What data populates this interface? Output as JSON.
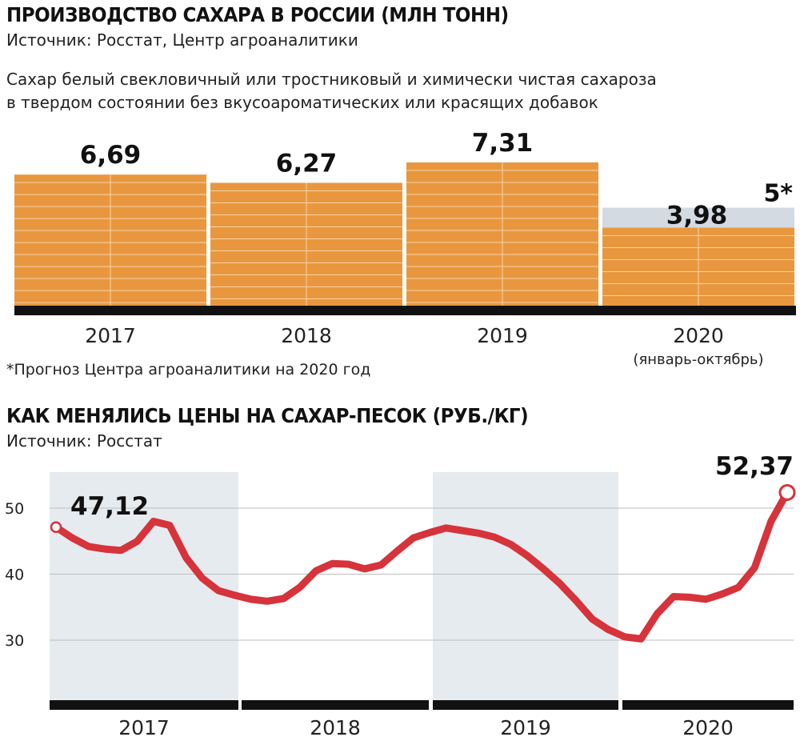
{
  "chart1": {
    "title": "ПРОИЗВОДСТВО САХАРА В РОССИИ (МЛН ТОНН)",
    "source": "Источник: Росстат, Центр агроаналитики",
    "subtitle_line1": "Сахар белый свекловичный или тростниковый и химически чистая сахароза",
    "subtitle_line2": "в твердом состоянии без вкусоароматических или красящих добавок",
    "footnote": "*Прогноз Центра агроаналитики на 2020 год"
  },
  "chart2": {
    "title": "КАК МЕНЯЛИСЬ ЦЕНЫ НА САХАР-ПЕСОК (РУБ./КГ)",
    "source": "Источник: Росстат"
  },
  "colors": {
    "bar": "#E8973E",
    "bar_line": "#F7D4A6",
    "forecast": "#D3DAE1",
    "baseline": "#111111",
    "line": "#D6333B",
    "band": "#E6EBF0",
    "grid": "#BDBDBD"
  },
  "chart_data": [
    {
      "type": "bar",
      "categories": [
        "2017",
        "2018",
        "2019",
        "2020"
      ],
      "category_notes": [
        "",
        "",
        "",
        "(январь-октябрь)"
      ],
      "values": [
        6.69,
        6.27,
        7.31,
        3.98
      ],
      "value_labels": [
        "6,69",
        "6,27",
        "7,31",
        "3,98"
      ],
      "forecast": {
        "category": "2020",
        "value": 5,
        "label": "5*"
      },
      "ylim": [
        0,
        7.31
      ]
    },
    {
      "type": "line",
      "x_years": [
        "2017",
        "2018",
        "2019",
        "2020"
      ],
      "x": [
        2017.0,
        2017.083,
        2017.167,
        2017.25,
        2017.333,
        2017.417,
        2017.5,
        2017.583,
        2017.667,
        2017.75,
        2017.833,
        2017.917,
        2018.0,
        2018.083,
        2018.167,
        2018.25,
        2018.333,
        2018.417,
        2018.5,
        2018.583,
        2018.667,
        2018.75,
        2018.833,
        2018.917,
        2019.0,
        2019.083,
        2019.167,
        2019.25,
        2019.333,
        2019.417,
        2019.5,
        2019.583,
        2019.667,
        2019.75,
        2019.833,
        2019.917,
        2020.0,
        2020.083,
        2020.167,
        2020.25,
        2020.333,
        2020.417,
        2020.5,
        2020.583,
        2020.667,
        2020.75
      ],
      "values": [
        47.12,
        45.5,
        44.2,
        43.8,
        43.6,
        45.0,
        48.0,
        47.4,
        42.5,
        39.4,
        37.5,
        36.8,
        36.2,
        35.9,
        36.3,
        38.0,
        40.5,
        41.6,
        41.5,
        40.8,
        41.4,
        43.5,
        45.5,
        46.3,
        47.0,
        46.6,
        46.2,
        45.6,
        44.5,
        42.8,
        40.8,
        38.6,
        36.0,
        33.2,
        31.6,
        30.5,
        30.2,
        34.0,
        36.6,
        36.5,
        36.2,
        37.0,
        38.0,
        41.0,
        48.0,
        52.37
      ],
      "start_label": "47,12",
      "end_label": "52,37",
      "yticks": [
        30,
        40,
        50
      ],
      "ytick_labels": [
        "30",
        "40",
        "50"
      ],
      "ylim": [
        20,
        55
      ]
    }
  ]
}
